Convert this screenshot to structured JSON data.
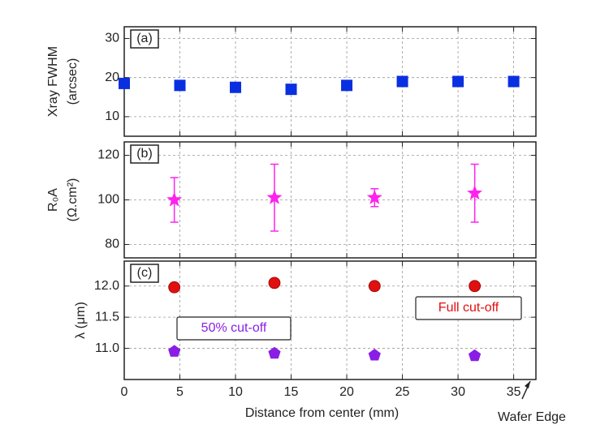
{
  "chart_data": [
    {
      "type": "scatter",
      "panel_label": "(a)",
      "ylabel": [
        "Xray FWHM",
        "(arcsec)"
      ],
      "x": [
        0,
        5,
        10,
        15,
        20,
        25,
        30,
        35
      ],
      "values": [
        18.5,
        18,
        17.5,
        17,
        18,
        19,
        19,
        19
      ],
      "color": "#0a2fe0",
      "marker": "square",
      "xlim": [
        0,
        37
      ],
      "xticks": [
        0,
        5,
        10,
        15,
        20,
        25,
        30,
        35
      ],
      "ylim": [
        5,
        33
      ],
      "yticks": [
        10,
        20,
        30
      ],
      "grid": true
    },
    {
      "type": "scatter",
      "panel_label": "(b)",
      "ylabel": [
        "R₀A",
        "(Ω.cm²)"
      ],
      "x": [
        4.5,
        13.5,
        22.5,
        31.5
      ],
      "values": [
        100,
        101,
        101,
        103
      ],
      "errors": [
        10,
        15,
        4,
        13
      ],
      "color": "#ff22ee",
      "marker": "star",
      "xlim": [
        0,
        37
      ],
      "xticks": [
        0,
        5,
        10,
        15,
        20,
        25,
        30,
        35
      ],
      "ylim": [
        74,
        126
      ],
      "yticks": [
        80,
        100,
        120
      ],
      "grid": true
    },
    {
      "type": "scatter",
      "panel_label": "(c)",
      "ylabel": [
        "λ (μm)"
      ],
      "xlabel": "Distance from center (mm)",
      "annotation": "Wafer Edge",
      "x": [
        4.5,
        13.5,
        22.5,
        31.5
      ],
      "series": [
        {
          "name": "Full cut-off",
          "color": "#e01010",
          "marker": "circle",
          "values": [
            11.98,
            12.05,
            12.0,
            12.0
          ]
        },
        {
          "name": "50% cut-off",
          "color": "#8a1ee6",
          "marker": "pentagon",
          "values": [
            10.95,
            10.92,
            10.89,
            10.88
          ]
        }
      ],
      "xlim": [
        0,
        37
      ],
      "xticks": [
        0,
        5,
        10,
        15,
        20,
        25,
        30,
        35
      ],
      "ylim": [
        10.5,
        12.4
      ],
      "yticks": [
        {
          "value": 12,
          "label": "12.0"
        },
        11.5,
        {
          "value": 11,
          "label": "11.0"
        }
      ],
      "grid": true
    }
  ]
}
